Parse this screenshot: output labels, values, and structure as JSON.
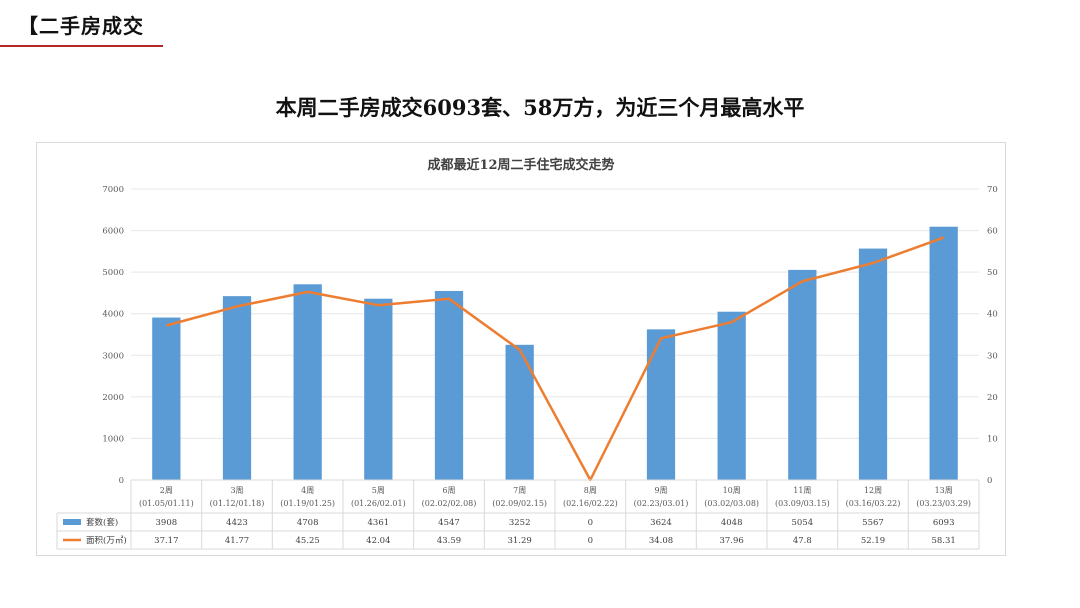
{
  "page": {
    "section_title": "【二手房成交",
    "headline": "本周二手房成交6093套、58万方，为近三个月最高水平"
  },
  "chart_data": {
    "type": "bar+line",
    "title": "成都最近12周二手住宅成交走势",
    "categories": [
      [
        "2周",
        "(01.05/01.11)"
      ],
      [
        "3周",
        "(01.12/01.18)"
      ],
      [
        "4周",
        "(01.19/01.25)"
      ],
      [
        "5周",
        "(01.26/02.01)"
      ],
      [
        "6周",
        "(02.02/02.08)"
      ],
      [
        "7周",
        "(02.09/02.15)"
      ],
      [
        "8周",
        "(02.16/02.22)"
      ],
      [
        "9周",
        "(02.23/03.01)"
      ],
      [
        "10周",
        "(03.02/03.08)"
      ],
      [
        "11周",
        "(03.09/03.15)"
      ],
      [
        "12周",
        "(03.16/03.22)"
      ],
      [
        "13周",
        "(03.23/03.29)"
      ]
    ],
    "series": [
      {
        "name": "套数(套)",
        "type": "bar",
        "axis": "left",
        "color": "#5b9bd5",
        "values": [
          3908,
          4423,
          4708,
          4361,
          4547,
          3252,
          0,
          3624,
          4048,
          5054,
          5567,
          6093
        ],
        "labels": [
          "3908",
          "4423",
          "4708",
          "4361",
          "4547",
          "3252",
          "0",
          "3624",
          "4048",
          "5054",
          "5567",
          "6093"
        ]
      },
      {
        "name": "面积(万㎡)",
        "type": "line",
        "axis": "right",
        "color": "#ed7d31",
        "values": [
          37.17,
          41.77,
          45.25,
          42.04,
          43.59,
          31.29,
          0,
          34.08,
          37.96,
          47.8,
          52.19,
          58.31
        ],
        "labels": [
          "37.17",
          "41.77",
          "45.25",
          "42.04",
          "43.59",
          "31.29",
          "0",
          "34.08",
          "37.96",
          "47.8",
          "52.19",
          "58.31"
        ]
      }
    ],
    "y_left": {
      "min": 0,
      "max": 7000,
      "ticks": [
        "0",
        "1000",
        "2000",
        "3000",
        "4000",
        "5000",
        "6000",
        "7000"
      ]
    },
    "y_right": {
      "min": 0,
      "max": 70,
      "ticks": [
        "0",
        "10",
        "20",
        "30",
        "40",
        "50",
        "60",
        "70"
      ]
    },
    "data_table": true
  }
}
